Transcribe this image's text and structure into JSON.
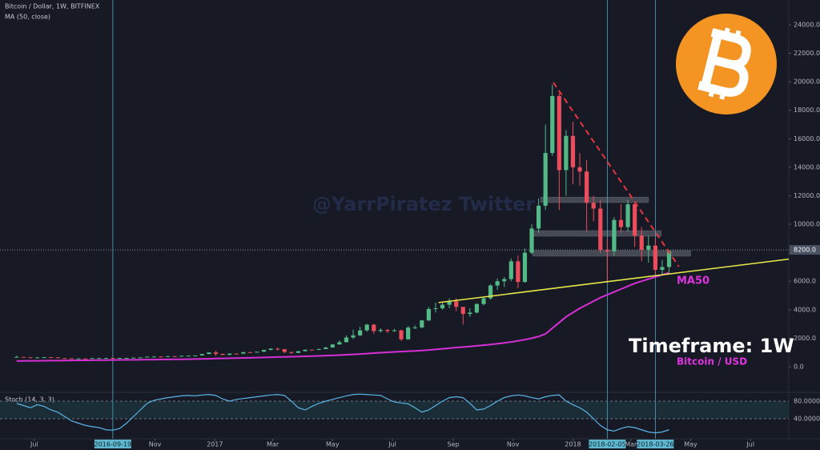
{
  "chart_data": {
    "type": "candlestick",
    "title": "Bitcoin / Dollar, 1W, BITFINEX",
    "x": [
      "2016-06-13",
      "2016-06-20",
      "2016-06-27",
      "2016-07-04",
      "2016-07-11",
      "2016-07-18",
      "2016-07-25",
      "2016-08-01",
      "2016-08-08",
      "2016-08-15",
      "2016-08-22",
      "2016-08-29",
      "2016-09-05",
      "2016-09-12",
      "2016-09-19",
      "2016-09-26",
      "2016-10-03",
      "2016-10-10",
      "2016-10-17",
      "2016-10-24",
      "2016-10-31",
      "2016-11-07",
      "2016-11-14",
      "2016-11-21",
      "2016-11-28",
      "2016-12-05",
      "2016-12-12",
      "2016-12-19",
      "2016-12-26",
      "2017-01-02",
      "2017-01-09",
      "2017-01-16",
      "2017-01-23",
      "2017-01-30",
      "2017-02-06",
      "2017-02-13",
      "2017-02-20",
      "2017-02-27",
      "2017-03-06",
      "2017-03-13",
      "2017-03-20",
      "2017-03-27",
      "2017-04-03",
      "2017-04-10",
      "2017-04-17",
      "2017-04-24",
      "2017-05-01",
      "2017-05-08",
      "2017-05-15",
      "2017-05-22",
      "2017-05-29",
      "2017-06-05",
      "2017-06-12",
      "2017-06-19",
      "2017-06-26",
      "2017-07-03",
      "2017-07-10",
      "2017-07-17",
      "2017-07-24",
      "2017-07-31",
      "2017-08-07",
      "2017-08-14",
      "2017-08-21",
      "2017-08-28",
      "2017-09-04",
      "2017-09-11",
      "2017-09-18",
      "2017-09-25",
      "2017-10-02",
      "2017-10-09",
      "2017-10-16",
      "2017-10-23",
      "2017-10-30",
      "2017-11-06",
      "2017-11-13",
      "2017-11-20",
      "2017-11-27",
      "2017-12-04",
      "2017-12-11",
      "2017-12-18",
      "2017-12-25",
      "2018-01-01",
      "2018-01-08",
      "2018-01-15",
      "2018-01-22",
      "2018-01-29",
      "2018-02-05",
      "2018-02-12",
      "2018-02-19",
      "2018-02-26",
      "2018-03-05",
      "2018-03-12",
      "2018-03-19",
      "2018-03-26",
      "2018-04-02",
      "2018-04-09"
    ],
    "open": [
      665,
      690,
      660,
      640,
      650,
      665,
      655,
      600,
      590,
      570,
      580,
      570,
      605,
      605,
      610,
      605,
      615,
      615,
      640,
      650,
      700,
      705,
      700,
      740,
      730,
      765,
      775,
      790,
      890,
      1000,
      900,
      830,
      920,
      915,
      1020,
      1000,
      1050,
      1180,
      1270,
      1230,
      1030,
      970,
      1090,
      1190,
      1180,
      1240,
      1350,
      1560,
      1720,
      2050,
      2200,
      2550,
      2950,
      2500,
      2580,
      2500,
      2550,
      1920,
      2750,
      2760,
      3250,
      4050,
      4100,
      4350,
      4600,
      4200,
      3700,
      3800,
      4400,
      4800,
      5700,
      6000,
      6150,
      7400,
      5950,
      8000,
      9700,
      11300,
      15000,
      19000,
      13800,
      16200,
      14000,
      13700,
      11500,
      11100,
      8200,
      8100,
      10300,
      9800,
      11400,
      9200,
      8200,
      8500,
      6800,
      7000
    ],
    "high": [
      780,
      700,
      680,
      670,
      680,
      680,
      660,
      610,
      600,
      590,
      590,
      610,
      620,
      620,
      615,
      620,
      625,
      645,
      660,
      710,
      740,
      740,
      750,
      750,
      770,
      780,
      800,
      900,
      1010,
      1130,
      920,
      930,
      930,
      1030,
      1040,
      1060,
      1190,
      1290,
      1330,
      1250,
      1050,
      1100,
      1210,
      1210,
      1260,
      1380,
      1600,
      1850,
      2200,
      2600,
      2800,
      3000,
      3000,
      2700,
      2650,
      2650,
      2600,
      2850,
      2900,
      3300,
      4200,
      4500,
      4500,
      4800,
      4800,
      4200,
      4100,
      4450,
      4900,
      5800,
      6200,
      6300,
      7600,
      7800,
      8300,
      10000,
      11800,
      17000,
      19800,
      19200,
      16600,
      17200,
      15000,
      14500,
      12000,
      11700,
      9000,
      10500,
      11400,
      11700,
      11600,
      9800,
      9200,
      9000,
      7500,
      8200
    ],
    "low": [
      640,
      640,
      620,
      630,
      640,
      640,
      590,
      570,
      560,
      560,
      560,
      565,
      595,
      600,
      595,
      600,
      605,
      610,
      635,
      645,
      690,
      690,
      695,
      720,
      725,
      755,
      765,
      780,
      880,
      750,
      800,
      820,
      880,
      910,
      980,
      990,
      1040,
      1150,
      1120,
      950,
      890,
      950,
      1070,
      1150,
      1160,
      1230,
      1340,
      1550,
      1700,
      1950,
      2150,
      2450,
      2300,
      2400,
      2350,
      2450,
      1800,
      1900,
      2650,
      2700,
      3200,
      3800,
      4000,
      4100,
      3900,
      2950,
      3500,
      3750,
      4300,
      4700,
      5400,
      5600,
      6000,
      5500,
      5900,
      7900,
      9400,
      11000,
      14800,
      11000,
      12000,
      12800,
      12700,
      9500,
      10200,
      8000,
      5900,
      7800,
      9400,
      9500,
      8400,
      7400,
      7300,
      6500,
      6500,
      6600
    ],
    "close": [
      690,
      660,
      640,
      650,
      665,
      655,
      600,
      590,
      570,
      580,
      570,
      605,
      605,
      610,
      605,
      615,
      615,
      640,
      650,
      700,
      705,
      700,
      740,
      730,
      765,
      775,
      790,
      890,
      1000,
      900,
      830,
      920,
      915,
      1020,
      1000,
      1050,
      1180,
      1270,
      1230,
      1030,
      970,
      1090,
      1190,
      1180,
      1240,
      1350,
      1560,
      1720,
      2050,
      2200,
      2550,
      2950,
      2500,
      2580,
      2500,
      2550,
      1920,
      2750,
      2760,
      3250,
      4050,
      4100,
      4350,
      4600,
      4200,
      3700,
      3800,
      4400,
      4800,
      5700,
      6000,
      6150,
      7400,
      5950,
      8000,
      9700,
      11300,
      15000,
      19000,
      13800,
      16200,
      14000,
      13700,
      11500,
      11100,
      8200,
      8100,
      10300,
      9800,
      11400,
      9200,
      8200,
      8500,
      6800,
      7000,
      8100
    ],
    "up_color": "#53b987",
    "down_color": "#eb4d5c",
    "xlim": [
      "2016-05-27",
      "2018-08-09"
    ],
    "xticks": [
      {
        "value": "2016-07-01",
        "label": "Jul"
      },
      {
        "value": "2016-11-01",
        "label": "Nov"
      },
      {
        "value": "2017-01-01",
        "label": "2017"
      },
      {
        "value": "2017-03-01",
        "label": "Mar"
      },
      {
        "value": "2017-05-01",
        "label": "May"
      },
      {
        "value": "2017-07-01",
        "label": "Jul"
      },
      {
        "value": "2017-09-01",
        "label": "Sep"
      },
      {
        "value": "2017-11-01",
        "label": "Nov"
      },
      {
        "value": "2018-01-01",
        "label": "2018"
      },
      {
        "value": "2018-03-01",
        "label": "Mar"
      },
      {
        "value": "2018-05-01",
        "label": "May"
      },
      {
        "value": "2018-07-01",
        "label": "Jul"
      }
    ],
    "ylim": [
      -1800,
      25740
    ],
    "yticks": [
      {
        "value": 0,
        "label": "0.0"
      },
      {
        "value": 2000,
        "label": "2000.0"
      },
      {
        "value": 4000,
        "label": "4000.0"
      },
      {
        "value": 6000,
        "label": "6000.0"
      },
      {
        "value": 8000,
        "label": "8000.0"
      },
      {
        "value": 10000,
        "label": "10000.0"
      },
      {
        "value": 12000,
        "label": "12000.0"
      },
      {
        "value": 14000,
        "label": "14000.0"
      },
      {
        "value": 16000,
        "label": "16000.0"
      },
      {
        "value": 18000,
        "label": "18000.0"
      },
      {
        "value": 20000,
        "label": "20000.0"
      },
      {
        "value": 22000,
        "label": "22000.0"
      },
      {
        "value": 24000,
        "label": "24000.0"
      }
    ],
    "price_line": {
      "value": 8200,
      "label": "8200.0"
    },
    "ma": {
      "name": "MA (50, close)",
      "color": "#d62fd6",
      "values": [
        400,
        405,
        410,
        415,
        420,
        425,
        430,
        435,
        440,
        445,
        450,
        455,
        460,
        465,
        470,
        475,
        480,
        485,
        490,
        495,
        500,
        505,
        510,
        515,
        520,
        528,
        536,
        545,
        555,
        575,
        585,
        595,
        605,
        615,
        625,
        635,
        650,
        665,
        680,
        690,
        700,
        715,
        730,
        745,
        760,
        775,
        795,
        815,
        840,
        865,
        890,
        920,
        955,
        985,
        1010,
        1035,
        1060,
        1085,
        1110,
        1140,
        1175,
        1215,
        1255,
        1300,
        1345,
        1385,
        1420,
        1465,
        1510,
        1560,
        1615,
        1670,
        1735,
        1815,
        1900,
        2000,
        2120,
        2300,
        2700,
        3100,
        3500,
        3800,
        4100,
        4350,
        4600,
        4850,
        5050,
        5250,
        5450,
        5650,
        5850,
        6000,
        6150,
        6300,
        6450,
        6600
      ]
    },
    "trendlines": [
      {
        "color": "#e8e84a",
        "dash": false,
        "x": [
          "2017-08-17",
          "2018-08-09"
        ],
        "y": [
          4500,
          7550
        ]
      },
      {
        "color": "#e8343f",
        "dash": true,
        "x": [
          "2017-12-12",
          "2018-04-19"
        ],
        "y": [
          19950,
          7030
        ]
      }
    ],
    "levels": [
      {
        "x": [
          "2017-11-29",
          "2018-03-19"
        ],
        "y": [
          11520,
          11900
        ]
      },
      {
        "x": [
          "2017-11-21",
          "2018-04-01"
        ],
        "y": [
          9160,
          9550
        ]
      },
      {
        "x": [
          "2017-11-21",
          "2018-05-01"
        ],
        "y": [
          7760,
          8150
        ]
      }
    ],
    "vlines": [
      "2016-09-19",
      "2018-02-05",
      "2018-03-26"
    ],
    "annotations": {
      "ma_label": "MA50",
      "timeframe": "Timeframe: 1W",
      "pair": "Bitcoin / USD",
      "watermark": "@YarrPiratez Twitter"
    },
    "stoch": {
      "title": "Stoch (14, 3, 3)",
      "color": "#5ab4e6",
      "ylim": [
        0,
        100
      ],
      "yticks": [
        {
          "value": 80,
          "label": "80.0000"
        },
        {
          "value": 40,
          "label": "40.0000"
        }
      ],
      "values": [
        75,
        70,
        65,
        72,
        68,
        60,
        55,
        45,
        35,
        30,
        25,
        22,
        20,
        15,
        14,
        18,
        30,
        45,
        60,
        75,
        82,
        85,
        88,
        90,
        92,
        93,
        92,
        94,
        95,
        93,
        85,
        80,
        84,
        86,
        88,
        90,
        92,
        94,
        95,
        93,
        80,
        65,
        60,
        68,
        75,
        80,
        84,
        88,
        92,
        95,
        96,
        95,
        94,
        93,
        85,
        78,
        76,
        74,
        65,
        55,
        60,
        70,
        80,
        88,
        90,
        88,
        75,
        60,
        62,
        70,
        80,
        88,
        92,
        94,
        92,
        88,
        85,
        90,
        93,
        94,
        80,
        72,
        65,
        55,
        40,
        25,
        15,
        12,
        18,
        22,
        20,
        15,
        10,
        8,
        10,
        15
      ]
    }
  }
}
